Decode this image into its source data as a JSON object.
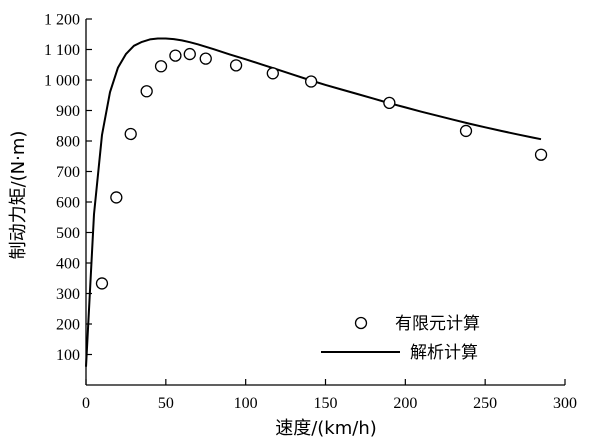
{
  "chart_data": {
    "type": "scatter",
    "xlabel": "速度/(km/h)",
    "ylabel": "制动力矩/(N·m)",
    "xlim": [
      0,
      300
    ],
    "ylim": [
      0,
      1200
    ],
    "x_ticks": [
      0,
      50,
      100,
      150,
      200,
      250,
      300
    ],
    "x_tick_labels": [
      "0",
      "50",
      "100",
      "150",
      "200",
      "250",
      "300"
    ],
    "y_ticks": [
      100,
      200,
      300,
      400,
      500,
      600,
      700,
      800,
      900,
      1000,
      1100,
      1200
    ],
    "y_tick_labels": [
      "100",
      "200",
      "300",
      "400",
      "500",
      "600",
      "700",
      "800",
      "900",
      "1 000",
      "1 100",
      "1 200"
    ],
    "grid": false,
    "legend_position": "bottom-right",
    "series": [
      {
        "name": "有限元计算",
        "style": "open-circle-markers",
        "x": [
          10,
          19,
          28,
          38,
          47,
          56,
          65,
          75,
          94,
          117,
          141,
          190,
          238,
          285
        ],
        "y": [
          333,
          615,
          823,
          963,
          1045,
          1080,
          1085,
          1070,
          1048,
          1022,
          995,
          925,
          833,
          755
        ]
      },
      {
        "name": "解析计算",
        "style": "solid-line",
        "x": [
          0,
          5,
          10,
          15,
          20,
          25,
          30,
          35,
          40,
          45,
          50,
          55,
          60,
          65,
          70,
          80,
          90,
          100,
          110,
          120,
          130,
          140,
          150,
          160,
          170,
          180,
          190,
          200,
          210,
          220,
          230,
          240,
          250,
          260,
          270,
          280,
          285
        ],
        "y": [
          60,
          560,
          820,
          960,
          1040,
          1085,
          1112,
          1125,
          1133,
          1136,
          1136,
          1134,
          1130,
          1124,
          1117,
          1101,
          1084,
          1068,
          1051,
          1034,
          1017,
          1000,
          984,
          969,
          954,
          939,
          924,
          910,
          896,
          883,
          870,
          857,
          845,
          833,
          822,
          811,
          806
        ]
      }
    ]
  },
  "colors": {
    "axis": "#000000",
    "line": "#000000",
    "marker": "#000000"
  }
}
